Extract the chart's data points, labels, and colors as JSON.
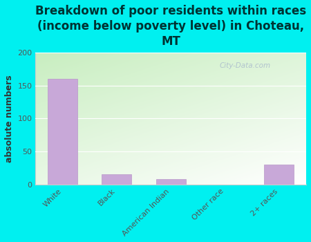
{
  "title": "Breakdown of poor residents within races\n(income below poverty level) in Choteau,\nMT",
  "categories": [
    "White",
    "Black",
    "American Indian",
    "Other race",
    "2+ races"
  ],
  "values": [
    160,
    15,
    8,
    0,
    30
  ],
  "bar_color": "#c8a8d8",
  "bar_edge_color": "#b898c8",
  "ylabel": "absolute numbers",
  "ylim": [
    0,
    200
  ],
  "yticks": [
    0,
    50,
    100,
    150,
    200
  ],
  "background_color": "#00f0f0",
  "plot_bg_topleft": "#c8eec0",
  "plot_bg_white": "#ffffff",
  "watermark": "City-Data.com",
  "title_fontsize": 12,
  "title_color": "#003333",
  "ylabel_fontsize": 9,
  "tick_fontsize": 8,
  "tick_color": "#555555"
}
